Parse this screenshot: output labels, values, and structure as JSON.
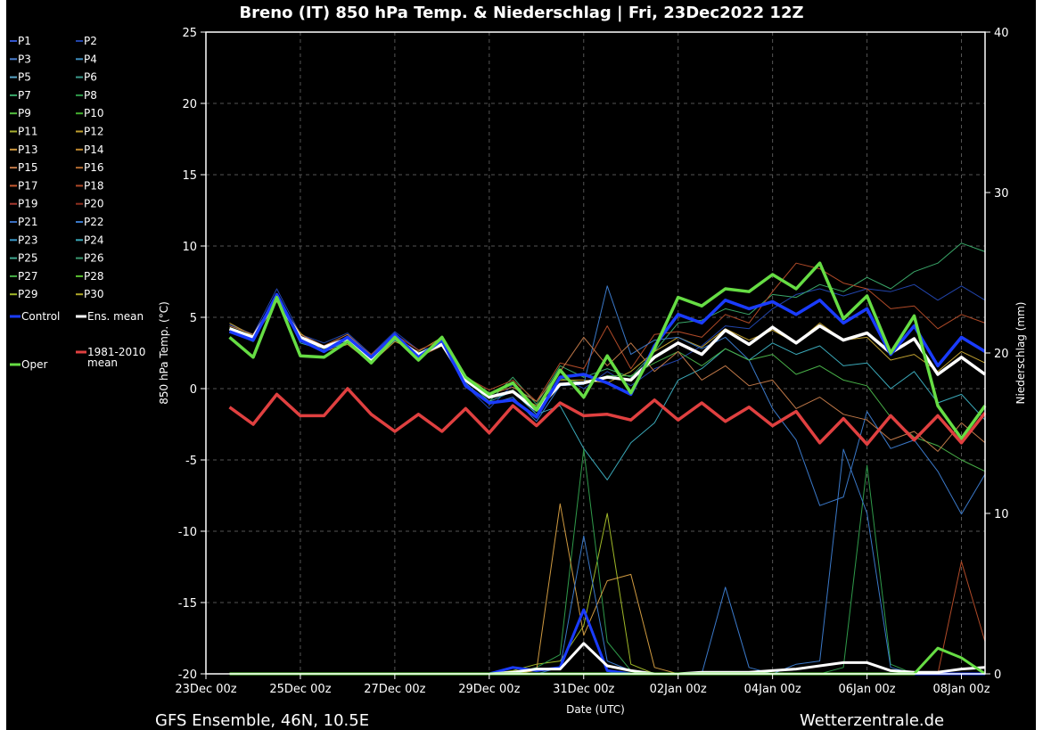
{
  "chart_data": {
    "type": "line",
    "title": "Breno  (IT)  850 hPa Temp. & Niederschlag | Fri, 23Dec2022 12Z",
    "xlabel": "Date (UTC)",
    "ylabel": "850 hPa Temp. (°C)",
    "y2label": "Niederschlag (mm)",
    "footer_left": "GFS Ensemble, 46N, 10.5E",
    "footer_right": "Wetterzentrale.de",
    "xlim": [
      "2022-12-23 00:00",
      "2023-01-08 12:00"
    ],
    "ylim": [
      -20,
      25
    ],
    "y2lim": [
      0,
      40
    ],
    "x_ticks": [
      "23Dec 00z",
      "25Dec 00z",
      "27Dec 00z",
      "29Dec 00z",
      "31Dec 00z",
      "02Jan 00z",
      "04Jan 00z",
      "06Jan 00z",
      "08Jan 00z"
    ],
    "y_ticks": [
      25,
      20,
      15,
      10,
      5,
      0,
      -5,
      -10,
      -15,
      -20
    ],
    "y2_ticks": [
      40,
      30,
      20,
      10,
      0
    ],
    "grid": true,
    "legend_position": "left",
    "legend": [
      {
        "label": "P1",
        "color": "#3355cc"
      },
      {
        "label": "P2",
        "color": "#2244aa"
      },
      {
        "label": "P3",
        "color": "#4a7fd0"
      },
      {
        "label": "P4",
        "color": "#3f8fbf"
      },
      {
        "label": "P5",
        "color": "#5aa6c8"
      },
      {
        "label": "P6",
        "color": "#3c9a8c"
      },
      {
        "label": "P7",
        "color": "#3aa86a"
      },
      {
        "label": "P8",
        "color": "#2f9a4a"
      },
      {
        "label": "P9",
        "color": "#55c040"
      },
      {
        "label": "P10",
        "color": "#44b030"
      },
      {
        "label": "P11",
        "color": "#a8b030"
      },
      {
        "label": "P12",
        "color": "#c0a030"
      },
      {
        "label": "P13",
        "color": "#d09a40"
      },
      {
        "label": "P14",
        "color": "#c08a30"
      },
      {
        "label": "P15",
        "color": "#c07848"
      },
      {
        "label": "P16",
        "color": "#b06a30"
      },
      {
        "label": "P17",
        "color": "#c85a30"
      },
      {
        "label": "P18",
        "color": "#b04a28"
      },
      {
        "label": "P19",
        "color": "#a83a30"
      },
      {
        "label": "P20",
        "color": "#903020"
      },
      {
        "label": "P21",
        "color": "#3a6ec0"
      },
      {
        "label": "P22",
        "color": "#3a78c8"
      },
      {
        "label": "P23",
        "color": "#3a98c8"
      },
      {
        "label": "P24",
        "color": "#3aa8b8"
      },
      {
        "label": "P25",
        "color": "#40a890"
      },
      {
        "label": "P26",
        "color": "#3a9870"
      },
      {
        "label": "P27",
        "color": "#48b048"
      },
      {
        "label": "P28",
        "color": "#5ac030"
      },
      {
        "label": "P29",
        "color": "#a0b828"
      },
      {
        "label": "P30",
        "color": "#b0a828"
      },
      {
        "label": "Control",
        "color": "#1a3cff"
      },
      {
        "label": "Ens. mean",
        "color": "#ffffff"
      },
      {
        "label": "1981-2010 mean",
        "color": "#e04040"
      },
      {
        "label": "Oper",
        "color": "#66dd44"
      }
    ],
    "x_dates": [
      "23Dec 12z",
      "24Dec 00z",
      "24Dec 12z",
      "25Dec 00z",
      "25Dec 12z",
      "26Dec 00z",
      "26Dec 12z",
      "27Dec 00z",
      "27Dec 12z",
      "28Dec 00z",
      "28Dec 12z",
      "29Dec 00z",
      "29Dec 12z",
      "30Dec 00z",
      "30Dec 12z",
      "31Dec 00z",
      "31Dec 12z",
      "01Jan 00z",
      "01Jan 12z",
      "02Jan 00z",
      "02Jan 12z",
      "03Jan 00z",
      "03Jan 12z",
      "04Jan 00z",
      "04Jan 12z",
      "05Jan 00z",
      "05Jan 12z",
      "06Jan 00z",
      "06Jan 12z",
      "07Jan 00z",
      "07Jan 12z",
      "08Jan 00z",
      "08Jan 12z"
    ],
    "series": [
      {
        "name": "Ens. mean",
        "color": "#ffffff",
        "axis": "temp",
        "width": 3.5,
        "values": [
          4.2,
          3.6,
          6.3,
          3.6,
          2.9,
          3.5,
          2.0,
          3.6,
          2.4,
          3.1,
          0.6,
          -0.6,
          -0.2,
          -1.5,
          0.3,
          0.4,
          0.8,
          0.6,
          2.2,
          3.2,
          2.4,
          4.1,
          3.1,
          4.3,
          3.2,
          4.4,
          3.4,
          3.9,
          2.5,
          3.5,
          1.0,
          2.2,
          1.0
        ]
      },
      {
        "name": "Control",
        "color": "#1a3cff",
        "axis": "temp",
        "width": 3.5,
        "values": [
          4.0,
          3.4,
          6.6,
          3.4,
          2.6,
          3.6,
          2.2,
          3.8,
          2.2,
          3.4,
          0.2,
          -1.0,
          -0.8,
          -2.0,
          0.8,
          1.0,
          0.4,
          -0.4,
          3.0,
          5.2,
          4.6,
          6.2,
          5.6,
          6.1,
          5.2,
          6.2,
          4.6,
          5.6,
          2.4,
          4.4,
          1.6,
          3.6,
          2.6
        ]
      },
      {
        "name": "Oper",
        "color": "#66dd44",
        "axis": "temp",
        "width": 3.5,
        "values": [
          3.6,
          2.2,
          6.4,
          2.3,
          2.2,
          3.3,
          1.8,
          3.6,
          2.0,
          3.6,
          0.8,
          -0.4,
          0.4,
          -1.5,
          1.3,
          -0.6,
          2.3,
          -0.3,
          2.8,
          6.4,
          5.8,
          7.0,
          6.8,
          8.0,
          7.0,
          8.8,
          4.9,
          6.5,
          2.5,
          5.1,
          -1.2,
          -3.5,
          -1.2
        ]
      },
      {
        "name": "1981-2010 mean",
        "color": "#e04040",
        "axis": "temp",
        "width": 3.5,
        "values": [
          -1.3,
          -2.5,
          -0.4,
          -1.9,
          -1.9,
          0.0,
          -1.8,
          -3.0,
          -1.8,
          -3.0,
          -1.4,
          -3.1,
          -1.2,
          -2.6,
          -1.0,
          -1.9,
          -1.8,
          -2.2,
          -0.8,
          -2.2,
          -1.0,
          -2.3,
          -1.3,
          -2.6,
          -1.6,
          -3.8,
          -2.1,
          -3.9,
          -1.9,
          -3.6,
          -1.9,
          -3.8,
          -1.7
        ]
      },
      {
        "name": "P2",
        "color": "#2244aa",
        "axis": "temp",
        "width": 1,
        "values": [
          4.5,
          3.8,
          7.0,
          3.8,
          3.2,
          3.9,
          2.4,
          4.0,
          2.7,
          3.0,
          0.2,
          -1.4,
          0.3,
          -1.8,
          0.9,
          0.0,
          1.2,
          0.2,
          1.4,
          2.0,
          3.0,
          4.4,
          4.2,
          5.6,
          6.6,
          7.0,
          6.5,
          7.0,
          6.8,
          7.3,
          6.2,
          7.2,
          6.2
        ]
      },
      {
        "name": "P7",
        "color": "#3aa86a",
        "axis": "temp",
        "width": 1,
        "values": [
          4.2,
          3.5,
          6.4,
          3.5,
          2.8,
          3.4,
          2.1,
          3.5,
          2.4,
          3.0,
          0.7,
          -0.9,
          0.8,
          -1.1,
          1.6,
          0.8,
          1.4,
          0.8,
          2.6,
          4.6,
          4.8,
          5.6,
          5.2,
          6.6,
          6.4,
          7.3,
          6.8,
          7.8,
          7.0,
          8.2,
          8.8,
          10.2,
          9.6
        ]
      },
      {
        "name": "P12",
        "color": "#c0a030",
        "axis": "temp",
        "width": 1,
        "values": [
          4.6,
          3.7,
          6.2,
          3.9,
          2.6,
          3.1,
          1.8,
          3.3,
          2.6,
          3.6,
          0.9,
          -0.5,
          -0.3,
          -1.2,
          0.6,
          0.6,
          0.4,
          1.2,
          2.6,
          3.6,
          2.9,
          4.2,
          3.4,
          4.1,
          3.2,
          4.6,
          3.4,
          3.6,
          2.0,
          2.4,
          1.2,
          2.6,
          1.8
        ]
      },
      {
        "name": "P18",
        "color": "#b04a28",
        "axis": "temp",
        "width": 1,
        "values": [
          4.3,
          3.6,
          6.1,
          3.5,
          3.0,
          3.6,
          2.4,
          3.8,
          2.7,
          3.4,
          0.8,
          -0.1,
          0.6,
          -0.9,
          1.8,
          1.4,
          4.4,
          1.4,
          3.8,
          4.0,
          3.6,
          5.2,
          4.6,
          6.8,
          8.8,
          8.4,
          7.4,
          7.0,
          5.6,
          5.8,
          4.2,
          5.2,
          4.6
        ]
      },
      {
        "name": "P22",
        "color": "#3a78c8",
        "axis": "temp",
        "width": 1,
        "values": [
          4.1,
          3.4,
          6.3,
          3.3,
          2.7,
          3.3,
          2.2,
          3.7,
          2.3,
          3.2,
          0.4,
          -1.1,
          -0.6,
          -2.3,
          0.2,
          0.3,
          7.2,
          2.4,
          3.4,
          3.6,
          2.8,
          3.6,
          2.0,
          -1.4,
          -3.6,
          -8.2,
          -7.6,
          -1.6,
          -4.2,
          -3.6,
          -5.8,
          -8.8,
          -6.0
        ]
      },
      {
        "name": "P24",
        "color": "#3aa8b8",
        "axis": "temp",
        "width": 1,
        "values": [
          4.0,
          3.3,
          6.6,
          3.2,
          2.7,
          3.2,
          1.9,
          3.4,
          2.5,
          3.2,
          0.3,
          -0.9,
          -0.2,
          -1.8,
          -1.2,
          -4.2,
          -6.4,
          -3.8,
          -2.4,
          0.6,
          1.4,
          2.8,
          2.0,
          3.2,
          2.4,
          3.0,
          1.6,
          1.8,
          0.0,
          1.2,
          -1.0,
          -0.4,
          -2.2
        ]
      },
      {
        "name": "P27",
        "color": "#48b048",
        "axis": "temp",
        "width": 1,
        "values": [
          4.3,
          3.7,
          6.5,
          3.6,
          2.9,
          3.5,
          2.1,
          3.6,
          2.4,
          3.2,
          0.5,
          -0.6,
          -0.1,
          -1.3,
          0.7,
          0.4,
          0.9,
          0.9,
          1.8,
          2.6,
          1.6,
          2.8,
          2.0,
          2.4,
          1.0,
          1.6,
          0.6,
          0.2,
          -2.0,
          -3.4,
          -4.0,
          -5.0,
          -5.8
        ]
      },
      {
        "name": "P15",
        "color": "#c07848",
        "axis": "temp",
        "width": 1,
        "values": [
          4.4,
          3.8,
          6.4,
          3.8,
          3.0,
          3.8,
          2.3,
          3.6,
          2.2,
          3.0,
          0.9,
          -0.4,
          0.1,
          -0.9,
          1.2,
          3.6,
          1.6,
          3.2,
          1.2,
          2.6,
          0.6,
          1.6,
          0.2,
          0.6,
          -1.4,
          -0.6,
          -1.8,
          -2.2,
          -3.6,
          -3.0,
          -4.4,
          -2.4,
          -3.8
        ]
      },
      {
        "name": "P29 precip",
        "color": "#a0b828",
        "axis": "precip",
        "width": 1,
        "values": [
          0,
          0,
          0,
          0,
          0,
          0,
          0,
          0,
          0,
          0,
          0,
          0,
          0.2,
          0.6,
          0.8,
          3.0,
          10.0,
          0.6,
          0,
          0,
          0,
          0,
          0,
          0,
          0,
          0,
          0,
          0,
          0,
          0,
          0,
          0,
          0
        ]
      },
      {
        "name": "P8 precip",
        "color": "#2f9a4a",
        "axis": "precip",
        "width": 1,
        "values": [
          0,
          0,
          0,
          0,
          0,
          0,
          0,
          0,
          0,
          0,
          0,
          0,
          0,
          0.4,
          1.2,
          14.0,
          2.0,
          0.2,
          0,
          0,
          0,
          0,
          0,
          0,
          0,
          0,
          0.4,
          13.0,
          0.6,
          0,
          0,
          0,
          0
        ]
      },
      {
        "name": "P13 precip",
        "color": "#d09a40",
        "axis": "precip",
        "width": 1,
        "values": [
          0,
          0,
          0,
          0,
          0,
          0,
          0,
          0,
          0,
          0,
          0,
          0,
          0,
          0.2,
          10.6,
          2.4,
          5.8,
          6.2,
          0.4,
          0,
          0,
          0,
          0,
          0,
          0,
          0,
          0,
          0,
          0,
          0,
          0,
          0,
          0
        ]
      },
      {
        "name": "P22 precip",
        "color": "#3a78c8",
        "axis": "precip",
        "width": 1,
        "values": [
          0,
          0,
          0,
          0,
          0,
          0,
          0,
          0,
          0,
          0,
          0,
          0,
          0,
          0,
          0.4,
          8.6,
          0.8,
          0.2,
          0,
          0,
          0,
          5.4,
          0.4,
          0,
          0.6,
          0.8,
          14.0,
          10.0,
          0.4,
          0,
          0,
          0,
          0
        ]
      },
      {
        "name": "P18 precip",
        "color": "#b04a28",
        "axis": "precip",
        "width": 1,
        "values": [
          0,
          0,
          0,
          0,
          0,
          0,
          0,
          0,
          0,
          0,
          0,
          0,
          0,
          0,
          0,
          0,
          0,
          0,
          0,
          0,
          0,
          0,
          0,
          0,
          0,
          0,
          0,
          0,
          0,
          0,
          0,
          7.0,
          2.0
        ]
      },
      {
        "name": "Control precip",
        "color": "#1a3cff",
        "axis": "precip",
        "width": 3,
        "values": [
          0,
          0,
          0,
          0,
          0,
          0,
          0,
          0,
          0,
          0,
          0,
          0,
          0.4,
          0.2,
          0.4,
          4.0,
          0.2,
          0,
          0,
          0,
          0,
          0,
          0,
          0,
          0,
          0,
          0,
          0,
          0,
          0,
          0,
          0,
          0
        ]
      },
      {
        "name": "Ens. mean precip",
        "color": "#ffffff",
        "axis": "precip",
        "width": 3,
        "values": [
          0,
          0,
          0,
          0,
          0,
          0,
          0,
          0,
          0,
          0,
          0,
          0,
          0.1,
          0.3,
          0.3,
          1.9,
          0.5,
          0.2,
          0.0,
          0.0,
          0.1,
          0.1,
          0.1,
          0.2,
          0.3,
          0.5,
          0.7,
          0.7,
          0.2,
          0.1,
          0.1,
          0.3,
          0.4
        ]
      },
      {
        "name": "Oper precip",
        "color": "#66dd44",
        "axis": "precip",
        "width": 3,
        "values": [
          0,
          0,
          0,
          0,
          0,
          0,
          0,
          0,
          0,
          0,
          0,
          0,
          0,
          0,
          0,
          0,
          0,
          0,
          0,
          0,
          0,
          0,
          0,
          0,
          0,
          0,
          0,
          0,
          0,
          0,
          1.6,
          1.0,
          0
        ]
      }
    ]
  }
}
